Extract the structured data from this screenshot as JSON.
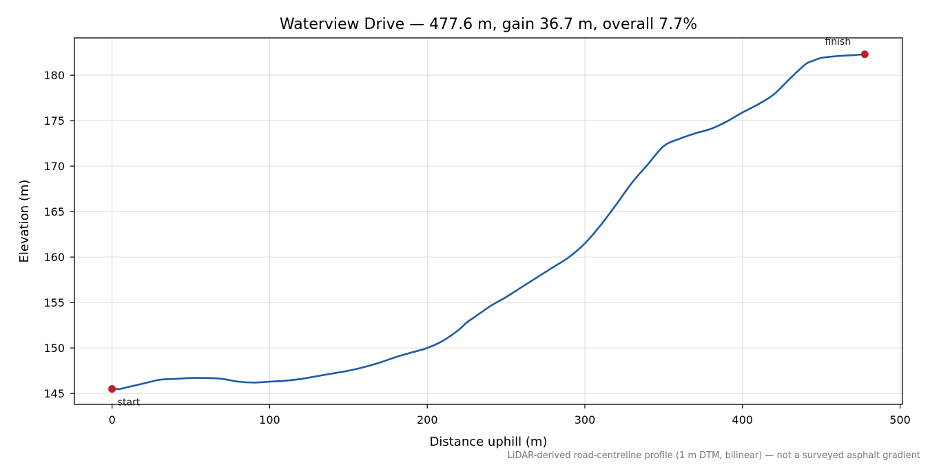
{
  "chart_data": {
    "type": "line",
    "title": "Waterview Drive — 477.6 m, gain 36.7 m, overall 7.7%",
    "xlabel": "Distance uphill (m)",
    "ylabel": "Elevation (m)",
    "xlim": [
      -23.9,
      501.5
    ],
    "ylim": [
      143.8,
      184.1
    ],
    "xticks": [
      0,
      100,
      200,
      300,
      400,
      500
    ],
    "yticks": [
      145,
      150,
      155,
      160,
      165,
      170,
      175,
      180
    ],
    "grid": true,
    "line_color": "#1f5aa6",
    "marker_color": "#c0202a",
    "series": [
      {
        "x": [
          0,
          5,
          10,
          20,
          30,
          40,
          50,
          60,
          70,
          80,
          90,
          100,
          110,
          120,
          130,
          140,
          150,
          160,
          170,
          180,
          190,
          200,
          210,
          220,
          225,
          230,
          240,
          250,
          260,
          270,
          280,
          290,
          300,
          310,
          320,
          330,
          340,
          350,
          360,
          370,
          380,
          390,
          400,
          410,
          420,
          430,
          440,
          445,
          450,
          460,
          470,
          477.6
        ],
        "y": [
          145.5,
          145.5,
          145.7,
          146.1,
          146.5,
          146.6,
          146.7,
          146.7,
          146.6,
          146.3,
          146.2,
          146.3,
          146.4,
          146.6,
          146.9,
          147.2,
          147.5,
          147.9,
          148.4,
          149.0,
          149.5,
          150.0,
          150.8,
          152.0,
          152.8,
          153.4,
          154.6,
          155.6,
          156.7,
          157.8,
          158.9,
          160.0,
          161.5,
          163.5,
          165.8,
          168.2,
          170.2,
          172.2,
          173.0,
          173.6,
          174.1,
          174.9,
          175.9,
          176.8,
          177.9,
          179.6,
          181.2,
          181.6,
          181.9,
          182.1,
          182.2,
          182.3
        ]
      }
    ],
    "annotations": [
      {
        "text": "start",
        "x": 0,
        "y": 145.5
      },
      {
        "text": "finish",
        "x": 477.6,
        "y": 182.3
      }
    ],
    "footnote": "LiDAR-derived road-centreline profile (1 m DTM, bilinear) — not a surveyed asphalt gradient"
  }
}
